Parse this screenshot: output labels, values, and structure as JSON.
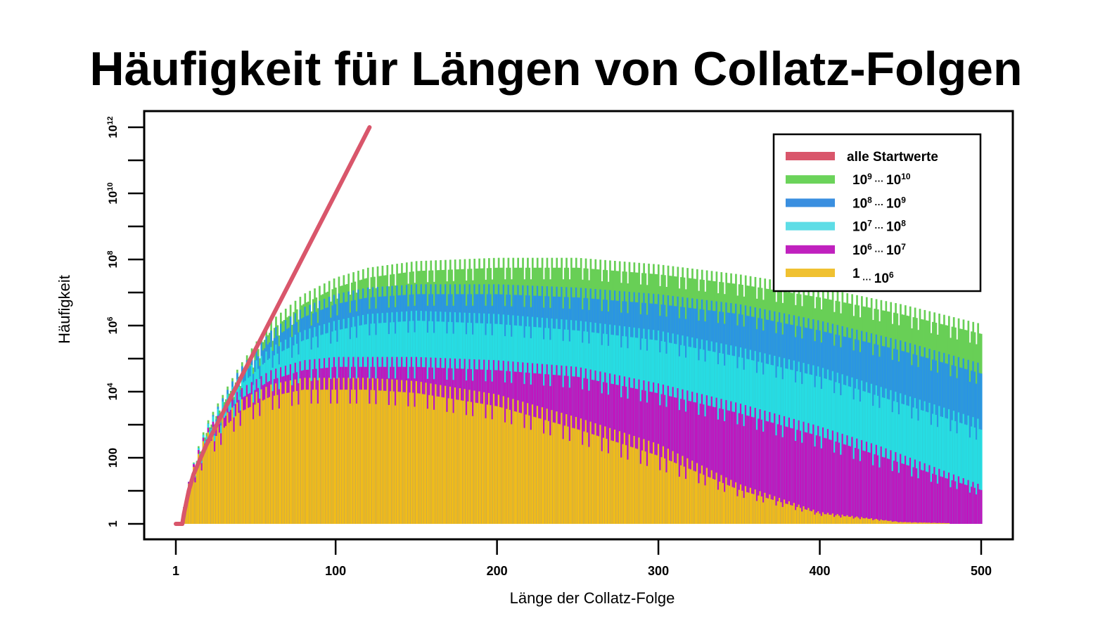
{
  "page": {
    "title": "Häufigkeit für Längen von Collatz-Folgen"
  },
  "chart_data": {
    "type": "bar",
    "subtype": "stacked-bar-logscale-with-line",
    "title": "Häufigkeit für Längen von Collatz-Folgen",
    "xlabel": "Länge der Collatz-Folge",
    "ylabel": "Häufigkeit",
    "xlim": [
      1,
      500
    ],
    "ylim_log10": [
      0,
      12
    ],
    "yscale": "log",
    "grid": false,
    "legend_position": "top-right",
    "x_ticks": [
      {
        "value": 1,
        "label": "1"
      },
      {
        "value": 100,
        "label": "100"
      },
      {
        "value": 200,
        "label": "200"
      },
      {
        "value": 300,
        "label": "300"
      },
      {
        "value": 400,
        "label": "400"
      },
      {
        "value": 500,
        "label": "500"
      }
    ],
    "y_ticks": [
      {
        "exp": 0,
        "label": "1",
        "base": "",
        "sup": ""
      },
      {
        "exp": 1,
        "label": "",
        "base": "",
        "sup": ""
      },
      {
        "exp": 2,
        "label": "100",
        "base": "",
        "sup": ""
      },
      {
        "exp": 3,
        "label": "",
        "base": "",
        "sup": ""
      },
      {
        "exp": 4,
        "label": "",
        "base": "10",
        "sup": "4"
      },
      {
        "exp": 5,
        "label": "",
        "base": "",
        "sup": ""
      },
      {
        "exp": 6,
        "label": "",
        "base": "10",
        "sup": "6"
      },
      {
        "exp": 7,
        "label": "",
        "base": "",
        "sup": ""
      },
      {
        "exp": 8,
        "label": "",
        "base": "10",
        "sup": "8"
      },
      {
        "exp": 9,
        "label": "",
        "base": "",
        "sup": ""
      },
      {
        "exp": 10,
        "label": "",
        "base": "10",
        "sup": "10"
      },
      {
        "exp": 11,
        "label": "",
        "base": "",
        "sup": ""
      },
      {
        "exp": 12,
        "label": "",
        "base": "10",
        "sup": "12"
      }
    ],
    "legend": [
      {
        "key": "alle",
        "label": "alle Startwerte",
        "color": "#D9566B",
        "base1": "",
        "sup1": "",
        "base2": "",
        "sup2": ""
      },
      {
        "key": "g9",
        "label": "",
        "color": "#6BD35A",
        "base1": "10",
        "sup1": "9",
        "base2": "10",
        "sup2": "10"
      },
      {
        "key": "g8",
        "label": "",
        "color": "#3A8FE0",
        "base1": "10",
        "sup1": "8",
        "base2": "10",
        "sup2": "9"
      },
      {
        "key": "g7",
        "label": "",
        "color": "#5EDDE6",
        "base1": "10",
        "sup1": "7",
        "base2": "10",
        "sup2": "8"
      },
      {
        "key": "g6",
        "label": "",
        "color": "#C021BE",
        "base1": "10",
        "sup1": "6",
        "base2": "10",
        "sup2": "7"
      },
      {
        "key": "g0",
        "label": "",
        "color": "#F0C131",
        "base1": "1",
        "sup1": "",
        "base2": "10",
        "sup2": "6"
      }
    ],
    "band_fill_colors": {
      "g9": "#68CF56",
      "g8": "#2A95E3",
      "g7": "#27DDE3",
      "g6": "#C015BE",
      "g0": "#F0BD19"
    },
    "line_series": {
      "name": "alle Startwerte",
      "color": "#D9566B",
      "description": "Approx. straight line on log scale: frequency ≈ 1 for length 1..5, then rising to ~10^12 at length ≈ 121",
      "points": [
        [
          1,
          0
        ],
        [
          5,
          0
        ],
        [
          6,
          0.3
        ],
        [
          9,
          1.0
        ],
        [
          12,
          1.5
        ],
        [
          20,
          2.4
        ],
        [
          40,
          4.3
        ],
        [
          60,
          6.2
        ],
        [
          80,
          8.1
        ],
        [
          100,
          10.0
        ],
        [
          121,
          12.0
        ]
      ]
    },
    "series_envelopes_log10": {
      "description": "Approximate upper envelope (log10 of cumulative stacked height) per band at selected lengths; bars oscillate strongly between adjacent lengths",
      "x": [
        10,
        20,
        40,
        60,
        80,
        100,
        120,
        150,
        200,
        250,
        300,
        350,
        400,
        450,
        500
      ],
      "series": [
        {
          "name": "1 … 10^6",
          "key": "g0",
          "values": [
            1.2,
            2.3,
            3.3,
            3.8,
            4.0,
            4.0,
            4.0,
            3.9,
            3.5,
            2.8,
            2.0,
            1.0,
            0.3,
            0.05,
            0.0
          ]
        },
        {
          "name": "10^6 … 10^7",
          "key": "g6",
          "values": [
            1.3,
            2.5,
            3.7,
            4.3,
            4.6,
            4.7,
            4.7,
            4.7,
            4.6,
            4.4,
            3.9,
            3.3,
            2.6,
            1.8,
            1.0
          ]
        },
        {
          "name": "10^7 … 10^8",
          "key": "g7",
          "values": [
            1.3,
            2.6,
            4.1,
            5.0,
            5.5,
            5.8,
            6.0,
            6.1,
            6.0,
            5.8,
            5.5,
            5.0,
            4.4,
            3.6,
            2.8
          ]
        },
        {
          "name": "10^8 … 10^9",
          "key": "g8",
          "values": [
            1.3,
            2.6,
            4.3,
            5.5,
            6.2,
            6.6,
            6.8,
            6.9,
            6.9,
            6.8,
            6.6,
            6.3,
            5.8,
            5.2,
            4.5
          ]
        },
        {
          "name": "10^9 … 10^10",
          "key": "g9",
          "values": [
            1.3,
            2.7,
            4.4,
            5.8,
            6.6,
            7.1,
            7.4,
            7.6,
            7.7,
            7.7,
            7.5,
            7.2,
            6.8,
            6.3,
            5.7
          ]
        }
      ]
    }
  }
}
